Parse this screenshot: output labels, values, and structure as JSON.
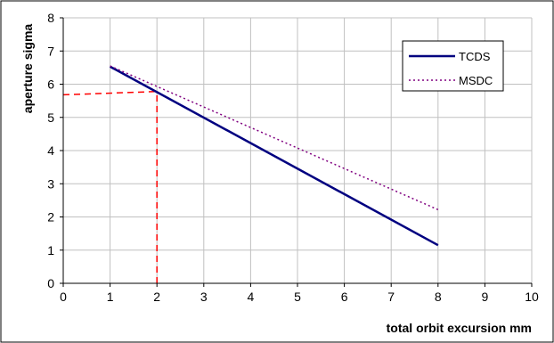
{
  "chart_data": {
    "type": "line",
    "title": "",
    "xlabel": "total orbit excursion mm",
    "ylabel": "aperture sigma",
    "xlim": [
      0,
      10
    ],
    "ylim": [
      0,
      8
    ],
    "xticks": [
      0,
      1,
      2,
      3,
      4,
      5,
      6,
      7,
      8,
      9,
      10
    ],
    "yticks": [
      0,
      1,
      2,
      3,
      4,
      5,
      6,
      7,
      8
    ],
    "grid": true,
    "legend_position": "top-right",
    "series": [
      {
        "name": "TCDS",
        "x": [
          1,
          8
        ],
        "y": [
          6.53,
          1.15
        ],
        "color": "#000080",
        "style": "solid"
      },
      {
        "name": "MSDC",
        "x": [
          1,
          8
        ],
        "y": [
          6.55,
          2.22
        ],
        "color": "#800080",
        "style": "dotted"
      }
    ],
    "reference_lines": {
      "color": "#ff0000",
      "style": "dashed",
      "horizontal": {
        "from": [
          0,
          5.68
        ],
        "to": [
          2,
          5.78
        ]
      },
      "vertical": {
        "from": [
          2,
          0
        ],
        "to": [
          2,
          5.78
        ]
      }
    }
  }
}
